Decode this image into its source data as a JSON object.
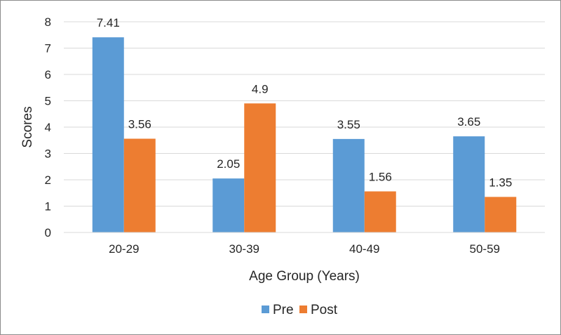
{
  "chart_data": {
    "type": "bar",
    "title": "",
    "xlabel": "Age Group (Years)",
    "ylabel": "Scores",
    "categories": [
      "20-29",
      "30-39",
      "40-49",
      "50-59"
    ],
    "series": [
      {
        "name": "Pre",
        "values": [
          7.41,
          2.05,
          3.55,
          3.65
        ],
        "labels": [
          "7.41",
          "2.05",
          "3.55",
          "3.65"
        ],
        "color": "#5b9bd5"
      },
      {
        "name": "Post",
        "values": [
          3.56,
          4.9,
          1.56,
          1.35
        ],
        "labels": [
          "3.56",
          "4.9",
          "1.56",
          "1.35"
        ],
        "color": "#ed7d31"
      }
    ],
    "ylim": [
      0,
      8
    ],
    "yticks": [
      "0",
      "1",
      "2",
      "3",
      "4",
      "5",
      "6",
      "7",
      "8"
    ],
    "grid": true,
    "legend_position": "bottom"
  }
}
